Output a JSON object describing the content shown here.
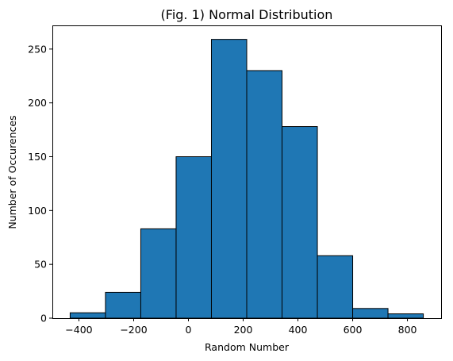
{
  "chart_data": {
    "type": "bar",
    "title": "(Fig. 1) Normal Distribution",
    "xlabel": "Random Number",
    "ylabel": "Number of Occurences",
    "bin_edges": [
      -432,
      -303,
      -174,
      -45,
      84,
      213,
      342,
      471,
      600,
      729,
      858
    ],
    "values": [
      5,
      24,
      83,
      150,
      259,
      230,
      178,
      58,
      9,
      4
    ],
    "xlim": [
      -497,
      923
    ],
    "ylim": [
      0,
      272
    ],
    "x_ticks": [
      -400,
      -200,
      0,
      200,
      400,
      600,
      800
    ],
    "x_tick_labels": [
      "−400",
      "−200",
      "0",
      "200",
      "400",
      "600",
      "800"
    ],
    "y_ticks": [
      0,
      50,
      100,
      150,
      200,
      250
    ],
    "y_tick_labels": [
      "0",
      "50",
      "100",
      "150",
      "200",
      "250"
    ],
    "grid": false,
    "legend": "none",
    "bar_color": "#1f77b4",
    "edge_color": "#000000"
  }
}
